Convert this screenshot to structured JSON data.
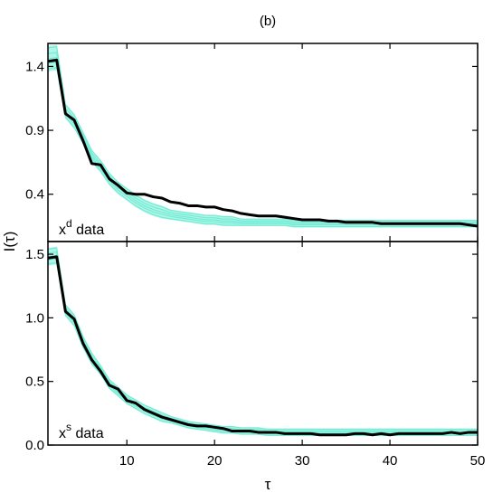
{
  "chart_data": {
    "type": "line",
    "title": "(b)",
    "xlabel": "τ",
    "ylabel": "I(τ)",
    "xlim": [
      1,
      50
    ],
    "x_ticks": [
      10,
      20,
      30,
      40,
      50
    ],
    "shared_x_axis": true,
    "grid": false,
    "panels": [
      {
        "annotation": {
          "base": "x",
          "superscript": "d",
          "suffix": " data"
        },
        "ylim": [
          0.03,
          1.58
        ],
        "y_ticks": [
          0.4,
          0.9,
          1.4
        ],
        "y_tick_labels": [
          "0.4",
          "0.9",
          "1.4"
        ],
        "x": [
          1,
          2,
          3,
          4,
          5,
          6,
          7,
          8,
          9,
          10,
          11,
          12,
          13,
          14,
          15,
          16,
          17,
          18,
          19,
          20,
          21,
          22,
          23,
          24,
          25,
          26,
          27,
          28,
          29,
          30,
          31,
          32,
          33,
          34,
          35,
          36,
          37,
          38,
          39,
          40,
          41,
          42,
          43,
          44,
          45,
          46,
          47,
          48,
          49,
          50
        ],
        "series": [
          {
            "role": "data",
            "color": "#000000",
            "values": [
              1.44,
              1.45,
              1.03,
              0.98,
              0.82,
              0.64,
              0.63,
              0.52,
              0.47,
              0.41,
              0.4,
              0.4,
              0.38,
              0.37,
              0.34,
              0.33,
              0.31,
              0.31,
              0.3,
              0.3,
              0.28,
              0.27,
              0.25,
              0.24,
              0.23,
              0.23,
              0.23,
              0.22,
              0.21,
              0.2,
              0.2,
              0.2,
              0.19,
              0.19,
              0.18,
              0.18,
              0.18,
              0.18,
              0.17,
              0.17,
              0.17,
              0.17,
              0.17,
              0.17,
              0.17,
              0.17,
              0.17,
              0.17,
              0.16,
              0.15
            ]
          },
          {
            "role": "surrogate-ensemble",
            "color": "#72ecd5",
            "values": [
              1.46,
              1.47,
              1.05,
              0.97,
              0.84,
              0.7,
              0.62,
              0.52,
              0.45,
              0.4,
              0.35,
              0.31,
              0.28,
              0.26,
              0.24,
              0.23,
              0.22,
              0.21,
              0.2,
              0.2,
              0.19,
              0.19,
              0.18,
              0.18,
              0.18,
              0.18,
              0.18,
              0.18,
              0.17,
              0.17,
              0.17,
              0.17,
              0.17,
              0.17,
              0.17,
              0.17,
              0.17,
              0.17,
              0.17,
              0.17,
              0.17,
              0.17,
              0.17,
              0.17,
              0.17,
              0.17,
              0.17,
              0.17,
              0.17,
              0.17
            ],
            "band_halfwidth": [
              0.1,
              0.1,
              0.06,
              0.06,
              0.05,
              0.05,
              0.05,
              0.05,
              0.05,
              0.05,
              0.05,
              0.05,
              0.05,
              0.05,
              0.04,
              0.04,
              0.04,
              0.04,
              0.04,
              0.04,
              0.04,
              0.04,
              0.03,
              0.03,
              0.03,
              0.03,
              0.03,
              0.03,
              0.03,
              0.03,
              0.03,
              0.03,
              0.03,
              0.03,
              0.03,
              0.03,
              0.03,
              0.03,
              0.03,
              0.03,
              0.03,
              0.03,
              0.03,
              0.03,
              0.03,
              0.03,
              0.03,
              0.03,
              0.03,
              0.03
            ]
          }
        ]
      },
      {
        "annotation": {
          "base": "x",
          "superscript": "s",
          "suffix": " data"
        },
        "ylim": [
          0.0,
          1.6
        ],
        "y_ticks": [
          0.0,
          0.5,
          1.0,
          1.5
        ],
        "y_tick_labels": [
          "0.0",
          "0.5",
          "1.0",
          "1.5"
        ],
        "x": [
          1,
          2,
          3,
          4,
          5,
          6,
          7,
          8,
          9,
          10,
          11,
          12,
          13,
          14,
          15,
          16,
          17,
          18,
          19,
          20,
          21,
          22,
          23,
          24,
          25,
          26,
          27,
          28,
          29,
          30,
          31,
          32,
          33,
          34,
          35,
          36,
          37,
          38,
          39,
          40,
          41,
          42,
          43,
          44,
          45,
          46,
          47,
          48,
          49,
          50
        ],
        "series": [
          {
            "role": "data",
            "color": "#000000",
            "values": [
              1.47,
              1.48,
              1.05,
              0.99,
              0.8,
              0.67,
              0.58,
              0.47,
              0.44,
              0.35,
              0.33,
              0.28,
              0.25,
              0.22,
              0.2,
              0.18,
              0.16,
              0.15,
              0.15,
              0.14,
              0.13,
              0.11,
              0.11,
              0.11,
              0.1,
              0.1,
              0.1,
              0.09,
              0.09,
              0.09,
              0.09,
              0.08,
              0.08,
              0.08,
              0.08,
              0.09,
              0.09,
              0.08,
              0.09,
              0.08,
              0.09,
              0.09,
              0.09,
              0.09,
              0.09,
              0.09,
              0.1,
              0.09,
              0.1,
              0.1
            ]
          },
          {
            "role": "surrogate-ensemble",
            "color": "#72ecd5",
            "values": [
              1.48,
              1.49,
              1.06,
              0.98,
              0.81,
              0.68,
              0.59,
              0.48,
              0.42,
              0.36,
              0.32,
              0.28,
              0.25,
              0.22,
              0.2,
              0.18,
              0.16,
              0.15,
              0.14,
              0.13,
              0.12,
              0.12,
              0.11,
              0.11,
              0.11,
              0.1,
              0.1,
              0.1,
              0.1,
              0.1,
              0.1,
              0.1,
              0.1,
              0.1,
              0.1,
              0.1,
              0.1,
              0.1,
              0.1,
              0.1,
              0.1,
              0.1,
              0.1,
              0.1,
              0.1,
              0.1,
              0.1,
              0.1,
              0.1,
              0.1
            ],
            "band_halfwidth": [
              0.07,
              0.07,
              0.05,
              0.05,
              0.05,
              0.05,
              0.04,
              0.04,
              0.04,
              0.04,
              0.04,
              0.04,
              0.04,
              0.04,
              0.03,
              0.03,
              0.03,
              0.03,
              0.03,
              0.03,
              0.03,
              0.03,
              0.03,
              0.03,
              0.03,
              0.03,
              0.03,
              0.03,
              0.03,
              0.03,
              0.03,
              0.03,
              0.03,
              0.03,
              0.03,
              0.03,
              0.03,
              0.03,
              0.03,
              0.03,
              0.03,
              0.03,
              0.03,
              0.03,
              0.03,
              0.03,
              0.03,
              0.03,
              0.03,
              0.03
            ]
          }
        ]
      }
    ]
  }
}
